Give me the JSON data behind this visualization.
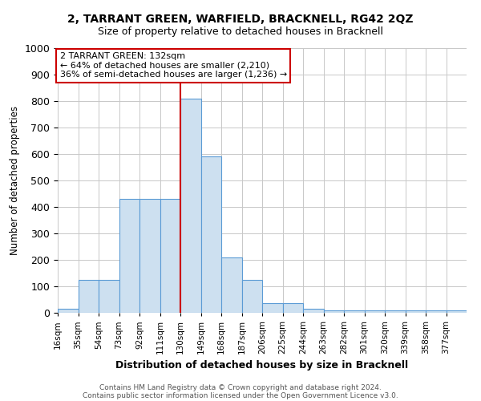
{
  "title": "2, TARRANT GREEN, WARFIELD, BRACKNELL, RG42 2QZ",
  "subtitle": "Size of property relative to detached houses in Bracknell",
  "xlabel": "Distribution of detached houses by size in Bracknell",
  "ylabel": "Number of detached properties",
  "footnote1": "Contains HM Land Registry data © Crown copyright and database right 2024.",
  "footnote2": "Contains public sector information licensed under the Open Government Licence v3.0.",
  "annotation_title": "2 TARRANT GREEN: 132sqm",
  "annotation_line1": "← 64% of detached houses are smaller (2,210)",
  "annotation_line2": "36% of semi-detached houses are larger (1,236) →",
  "bar_edges": [
    16,
    35,
    54,
    73,
    92,
    111,
    130,
    149,
    168,
    187,
    206,
    225,
    244,
    263,
    282,
    301,
    320,
    339,
    358,
    377,
    396
  ],
  "bar_heights": [
    15,
    125,
    125,
    430,
    430,
    430,
    810,
    590,
    210,
    125,
    37,
    37,
    14,
    8,
    8,
    8,
    8,
    8,
    8,
    8
  ],
  "bar_color": "#cde0f0",
  "bar_edge_color": "#5b9bd5",
  "vline_color": "#cc0000",
  "vline_x": 130,
  "annotation_box_color": "#cc0000",
  "background_color": "#ffffff",
  "grid_color": "#c8c8c8",
  "ylim": [
    0,
    1000
  ],
  "yticks": [
    0,
    100,
    200,
    300,
    400,
    500,
    600,
    700,
    800,
    900,
    1000
  ]
}
